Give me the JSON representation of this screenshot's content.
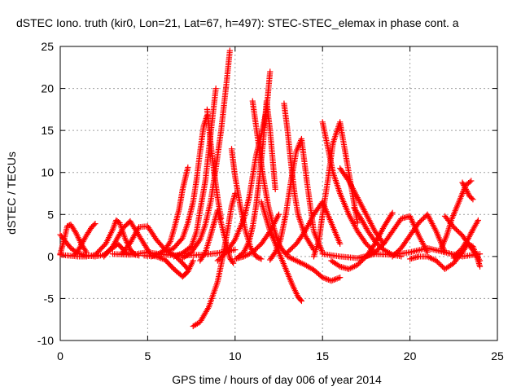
{
  "chart_data": {
    "type": "scatter",
    "title": "dSTEC Iono. truth (kir0, Lon=21, Lat=67, h=497): STEC-STEC_elemax in phase cont. a",
    "xlabel": "GPS time / hours of day 006 of year 2014",
    "ylabel": "dSTEC  / TECUs",
    "xlim": [
      0,
      25
    ],
    "ylim": [
      -10,
      25
    ],
    "xticks": [
      "0",
      "5",
      "10",
      "15",
      "20",
      "25"
    ],
    "yticks": [
      "-10",
      "-5",
      "0",
      "5",
      "10",
      "15",
      "20",
      "25"
    ],
    "grid": true,
    "marker": "plus",
    "color": "#ff0000",
    "series": [
      {
        "x": [
          0.0,
          0.3,
          0.6,
          1.0,
          1.5,
          2.0,
          2.5,
          3.0,
          3.3,
          3.8,
          4.5
        ],
        "y": [
          2.6,
          1.8,
          1.0,
          0.4,
          0.1,
          0.0,
          0.2,
          1.0,
          1.5,
          0.4,
          0.1
        ]
      },
      {
        "x": [
          0.0,
          0.2,
          0.4,
          0.6,
          0.9,
          1.2,
          1.5
        ],
        "y": [
          0.3,
          1.8,
          3.6,
          3.8,
          2.8,
          1.5,
          0.5
        ]
      },
      {
        "x": [
          0.8,
          1.0,
          1.2,
          1.5,
          1.8,
          2.0
        ],
        "y": [
          0.2,
          0.6,
          1.4,
          2.5,
          3.5,
          3.9
        ]
      },
      {
        "x": [
          0.0,
          0.5,
          1.0,
          1.5,
          2.0,
          2.6,
          3.0,
          3.2,
          3.4,
          3.7,
          4.0,
          4.3
        ],
        "y": [
          0.2,
          0.1,
          0.0,
          0.0,
          0.2,
          1.5,
          3.2,
          4.3,
          4.0,
          2.2,
          0.8,
          0.2
        ]
      },
      {
        "x": [
          3.5,
          4.0,
          4.5,
          5.0,
          5.5,
          6.0,
          6.5,
          7.0,
          7.3
        ],
        "y": [
          0.3,
          1.6,
          3.5,
          3.6,
          2.0,
          0.8,
          0.2,
          -0.8,
          -1.5
        ]
      },
      {
        "x": [
          4.8,
          5.5,
          6.0,
          6.5,
          7.0,
          7.3,
          7.6
        ],
        "y": [
          0.1,
          0.0,
          -0.4,
          -1.5,
          -2.4,
          -1.8,
          -0.5
        ]
      },
      {
        "x": [
          2.5,
          3.0,
          3.6,
          4.0,
          4.5,
          5.0,
          5.2
        ],
        "y": [
          0.0,
          1.2,
          3.4,
          4.2,
          2.5,
          0.8,
          0.1
        ]
      },
      {
        "x": [
          5.2,
          5.6,
          6.0,
          6.3,
          6.5,
          6.8,
          7.0,
          7.3
        ],
        "y": [
          0.0,
          0.3,
          0.8,
          1.8,
          3.2,
          5.6,
          8.0,
          10.6
        ]
      },
      {
        "x": [
          6.0,
          6.5,
          7.0,
          7.3,
          7.6,
          7.8,
          8.0,
          8.2,
          8.4
        ],
        "y": [
          0.5,
          1.0,
          2.2,
          4.0,
          6.5,
          9.2,
          12.5,
          15.5,
          16.8
        ]
      },
      {
        "x": [
          6.5,
          7.0,
          7.5,
          7.8,
          8.0,
          8.3,
          8.6,
          8.9
        ],
        "y": [
          0.0,
          0.4,
          1.2,
          3.0,
          5.5,
          9.0,
          14.5,
          20.0
        ]
      },
      {
        "x": [
          7.0,
          7.5,
          8.0,
          8.3,
          8.6,
          8.9,
          9.2,
          9.5,
          9.7
        ],
        "y": [
          -0.2,
          0.5,
          2.0,
          3.8,
          6.5,
          10.5,
          15.0,
          20.5,
          24.5
        ]
      },
      {
        "x": [
          8.0,
          8.3,
          8.6,
          8.8,
          9.0,
          9.2,
          9.5,
          9.7,
          9.9
        ],
        "y": [
          -0.5,
          0.5,
          2.5,
          4.0,
          5.5,
          4.0,
          1.5,
          -0.2,
          -0.8
        ]
      },
      {
        "x": [
          7.6,
          8.0,
          8.5,
          9.0,
          9.3,
          9.6,
          9.8,
          10.0
        ],
        "y": [
          -8.3,
          -7.8,
          -6.0,
          -3.0,
          0.0,
          3.5,
          6.0,
          7.5
        ]
      },
      {
        "x": [
          8.4,
          8.6,
          8.8,
          9.0,
          9.2
        ],
        "y": [
          17.5,
          13.5,
          10.0,
          7.0,
          4.5
        ]
      },
      {
        "x": [
          9.0,
          9.5,
          10.0,
          10.5,
          10.8,
          11.0,
          11.2,
          11.5,
          11.8,
          12.0
        ],
        "y": [
          -0.5,
          0.5,
          2.0,
          4.5,
          7.0,
          9.5,
          12.0,
          14.5,
          17.5,
          22.0
        ]
      },
      {
        "x": [
          9.8,
          10.0,
          10.3,
          10.6,
          10.9,
          11.2,
          11.5
        ],
        "y": [
          12.8,
          9.5,
          6.0,
          3.0,
          1.0,
          0.0,
          -0.3
        ]
      },
      {
        "x": [
          10.2,
          10.5,
          10.8,
          11.0,
          11.2,
          11.4,
          11.6,
          11.8,
          12.0,
          12.3
        ],
        "y": [
          0.0,
          0.5,
          1.8,
          3.5,
          6.0,
          9.5,
          13.5,
          18.5,
          15.0,
          8.0
        ]
      },
      {
        "x": [
          11.0,
          11.3,
          11.6,
          11.9,
          12.2,
          12.5,
          12.8,
          13.0
        ],
        "y": [
          18.5,
          14.0,
          9.5,
          6.0,
          3.5,
          1.5,
          0.5,
          0.2
        ]
      },
      {
        "x": [
          11.5,
          12.0,
          12.5,
          13.0,
          13.3,
          13.6,
          13.8
        ],
        "y": [
          6.5,
          3.0,
          0.5,
          -2.0,
          -3.5,
          -4.8,
          -5.3
        ]
      },
      {
        "x": [
          10.0,
          10.5,
          11.0,
          11.5,
          12.0,
          12.5
        ],
        "y": [
          -0.3,
          0.0,
          0.5,
          1.5,
          3.0,
          5.0
        ]
      },
      {
        "x": [
          12.0,
          12.3,
          12.6,
          12.9,
          13.2,
          13.5,
          13.8,
          14.1,
          14.5,
          15.0
        ],
        "y": [
          -0.4,
          0.5,
          2.0,
          5.0,
          9.0,
          12.5,
          14.0,
          9.0,
          3.0,
          0.5
        ]
      },
      {
        "x": [
          12.8,
          13.0,
          13.2,
          13.4,
          13.6,
          14.0,
          14.5
        ],
        "y": [
          18.2,
          15.0,
          11.0,
          7.5,
          5.0,
          2.5,
          0.8
        ]
      },
      {
        "x": [
          13.0,
          13.5,
          14.0,
          14.5,
          15.0,
          15.5,
          16.0
        ],
        "y": [
          0.5,
          1.5,
          3.0,
          5.0,
          6.5,
          4.0,
          1.5
        ]
      },
      {
        "x": [
          14.5,
          14.8,
          15.0,
          15.3,
          15.6,
          16.0,
          16.5,
          17.0
        ],
        "y": [
          0.0,
          2.0,
          5.0,
          9.0,
          13.5,
          16.0,
          10.0,
          4.0
        ]
      },
      {
        "x": [
          15.0,
          15.3,
          15.6,
          16.0,
          16.5,
          17.0,
          17.5,
          18.0
        ],
        "y": [
          16.0,
          13.0,
          10.0,
          7.5,
          5.0,
          3.0,
          1.5,
          0.5
        ]
      },
      {
        "x": [
          16.0,
          16.5,
          17.0,
          17.5,
          18.0,
          18.5
        ],
        "y": [
          10.5,
          9.0,
          7.0,
          5.0,
          3.0,
          1.5
        ]
      },
      {
        "x": [
          13.0,
          13.5,
          14.0,
          14.5,
          15.0,
          15.5,
          16.0
        ],
        "y": [
          0.0,
          -0.5,
          -1.0,
          -1.6,
          -2.5,
          -2.9,
          -2.5
        ]
      },
      {
        "x": [
          15.5,
          16.0,
          16.5,
          17.0,
          17.5,
          18.0,
          18.5,
          19.0
        ],
        "y": [
          -0.5,
          -1.2,
          -1.5,
          -1.0,
          0.0,
          1.5,
          3.5,
          5.2
        ]
      },
      {
        "x": [
          16.8,
          17.2,
          17.6,
          18.0,
          18.5,
          19.0,
          19.5
        ],
        "y": [
          5.8,
          4.5,
          3.0,
          1.8,
          0.8,
          0.2,
          0.0
        ]
      },
      {
        "x": [
          17.5,
          18.0,
          18.5,
          19.0,
          19.5,
          20.0,
          20.5,
          21.0
        ],
        "y": [
          0.0,
          0.5,
          1.5,
          3.0,
          4.5,
          4.8,
          2.5,
          0.5
        ]
      },
      {
        "x": [
          19.0,
          19.5,
          20.0,
          20.5,
          21.0,
          21.5,
          22.0
        ],
        "y": [
          0.0,
          1.0,
          2.5,
          4.0,
          5.0,
          3.0,
          0.5
        ]
      },
      {
        "x": [
          20.0,
          20.5,
          21.0,
          21.5,
          22.0,
          22.5,
          23.0
        ],
        "y": [
          -0.3,
          0.0,
          0.0,
          -0.5,
          -1.5,
          -0.8,
          0.5
        ]
      },
      {
        "x": [
          21.8,
          22.1,
          22.4,
          22.7,
          23.0,
          23.2,
          23.5
        ],
        "y": [
          1.0,
          2.5,
          4.5,
          6.0,
          7.5,
          8.5,
          9.0
        ]
      },
      {
        "x": [
          23.0,
          23.2,
          23.4,
          23.6
        ],
        "y": [
          8.8,
          8.0,
          7.2,
          6.8
        ]
      },
      {
        "x": [
          22.0,
          22.5,
          23.0,
          23.5,
          23.8,
          24.0
        ],
        "y": [
          4.8,
          3.5,
          2.5,
          1.0,
          0.2,
          -0.5
        ]
      },
      {
        "x": [
          22.5,
          23.0,
          23.3,
          23.6,
          23.9
        ],
        "y": [
          0.0,
          1.0,
          2.0,
          3.2,
          4.3
        ]
      },
      {
        "x": [
          22.5,
          23.0,
          23.3,
          23.6,
          23.9,
          24.0
        ],
        "y": [
          -0.2,
          0.5,
          1.5,
          1.2,
          -0.5,
          -1.2
        ]
      },
      {
        "x": [
          3.0,
          4.0,
          5.0,
          6.0,
          7.0,
          8.0,
          9.0,
          10.0
        ],
        "y": [
          0.3,
          0.2,
          0.5,
          0.2,
          0.1,
          0.2,
          0.4,
          0.8
        ]
      },
      {
        "x": [
          15.0,
          16.0,
          17.0,
          18.0,
          19.0,
          20.0,
          21.0,
          22.0,
          23.0,
          24.0
        ],
        "y": [
          0.3,
          0.0,
          -0.2,
          0.3,
          0.2,
          0.5,
          1.0,
          0.5,
          0.0,
          0.3
        ]
      }
    ]
  }
}
